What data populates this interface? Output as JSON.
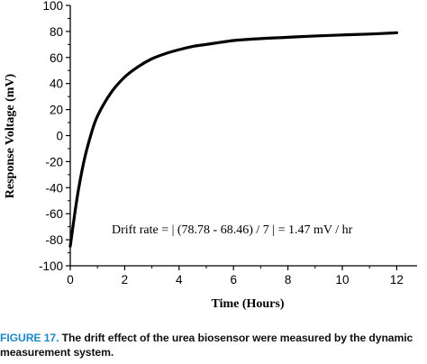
{
  "chart_data": {
    "type": "line",
    "title": "",
    "xlabel": "Time (Hours)",
    "ylabel": "Response Voltage (mV)",
    "xlim": [
      0,
      12.5
    ],
    "ylim": [
      -100,
      100
    ],
    "xticks": [
      "0",
      "2",
      "4",
      "6",
      "8",
      "10",
      "12"
    ],
    "yticks": [
      "-100",
      "-80",
      "-60",
      "-40",
      "-20",
      "0",
      "20",
      "40",
      "60",
      "80",
      "100"
    ],
    "grid": false,
    "annotation": "Drift rate = | (78.78 - 68.46) / 7 | = 1.47 mV / hr",
    "series": [
      {
        "x": [
          0,
          0.25,
          0.5,
          0.75,
          1,
          1.5,
          2,
          2.5,
          3,
          3.5,
          4,
          4.5,
          5,
          6,
          7,
          8,
          9,
          10,
          11,
          12
        ],
        "y": [
          -85,
          -48,
          -20,
          0,
          15,
          33,
          45,
          53,
          59,
          63,
          66,
          68.5,
          70,
          73,
          74.5,
          75.5,
          76.5,
          77.3,
          78,
          79
        ]
      }
    ]
  },
  "caption": {
    "label": "FIGURE 17.",
    "text": "The drift effect of the urea biosensor were measured by the dynamic measurement system."
  }
}
